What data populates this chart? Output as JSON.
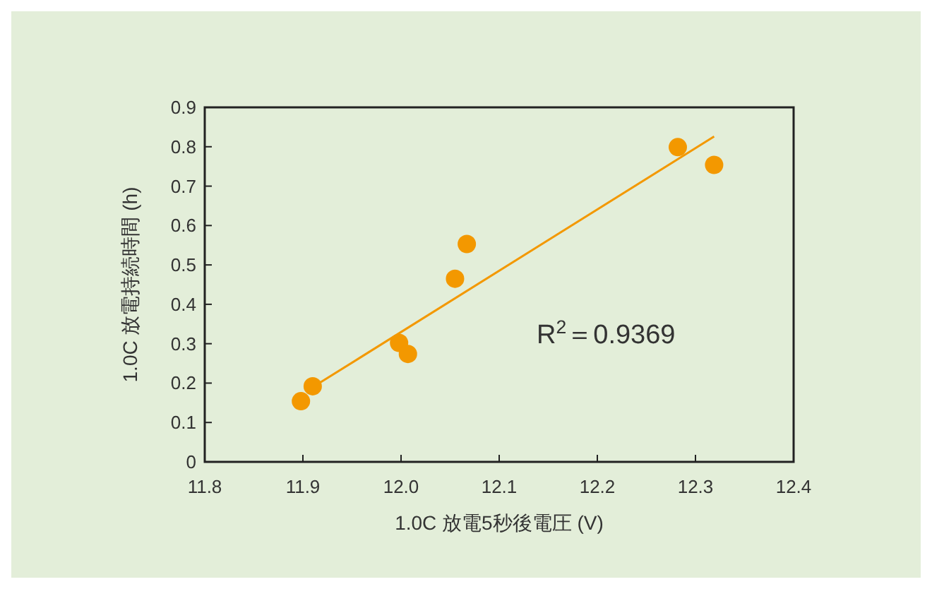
{
  "chart_data": {
    "type": "scatter",
    "xlabel": "1.0C 放電5秒後電圧 (V)",
    "ylabel": "1.0C 放電持続時間 (h)",
    "annotations": [
      "R$^{2}$＝0.9369"
    ],
    "series": [
      {
        "color": "#f39800",
        "marker": "circle",
        "x": [
          11.898,
          11.91,
          11.998,
          12.007,
          12.055,
          12.067,
          12.282,
          12.319
        ],
        "values": [
          0.154,
          0.192,
          0.302,
          0.274,
          0.465,
          0.553,
          0.799,
          0.754
        ]
      },
      {
        "type": "line",
        "color": "#f39800",
        "x": [
          11.918,
          12.319
        ],
        "values": [
          0.202,
          0.826
        ]
      }
    ],
    "xlim": [
      11.8,
      12.4
    ],
    "xticks": [
      {
        "value": 11.8,
        "label": "11.8"
      },
      {
        "value": 11.9,
        "label": "11.9"
      },
      {
        "value": 12.0,
        "label": "12.0"
      },
      {
        "value": 12.1,
        "label": "12.1"
      },
      {
        "value": 12.2,
        "label": "12.2"
      },
      {
        "value": 12.3,
        "label": "12.3"
      },
      {
        "value": 12.4,
        "label": "12.4"
      }
    ],
    "ylim": [
      0,
      0.9
    ],
    "yticks": [
      0,
      0.1,
      0.2,
      0.3,
      0.4,
      0.5,
      0.6,
      0.7,
      0.8,
      0.9
    ],
    "grid": false
  }
}
